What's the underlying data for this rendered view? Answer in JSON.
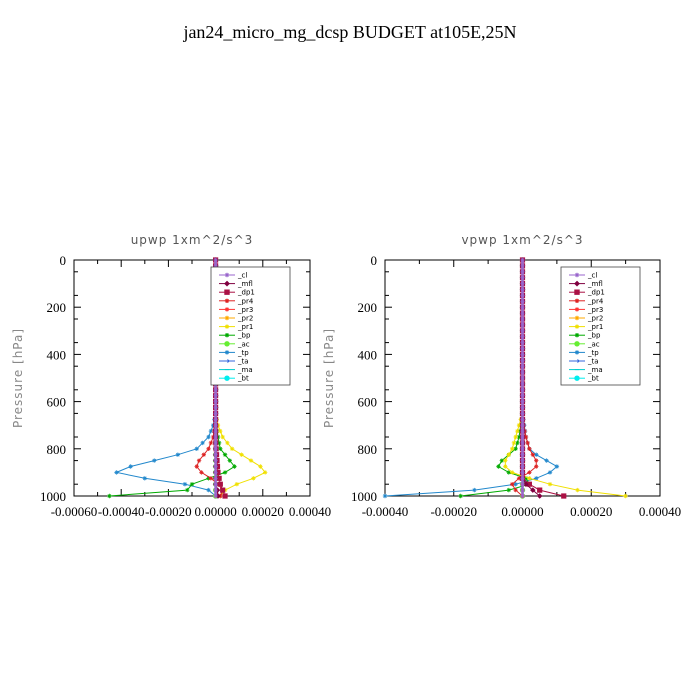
{
  "title": "jan24_micro_mg_dcsp  BUDGET at105E,25N",
  "chart_data": [
    {
      "type": "line",
      "title": "upwp   1xm^2/s^3",
      "ylabel": "Pressure [hPa]",
      "ylim": [
        1000,
        0
      ],
      "xlim": [
        -0.0006,
        0.0004
      ],
      "yticks": [
        0,
        200,
        400,
        600,
        800,
        1000
      ],
      "xtick_labels": [
        "-0.00060",
        "-0.00040",
        "-0.00020",
        "0.00000",
        "0.00020",
        "0.00040"
      ],
      "legend_position": "top-right",
      "pressure": [
        0,
        100,
        200,
        300,
        400,
        500,
        600,
        650,
        700,
        750,
        800,
        825,
        850,
        875,
        900,
        925,
        950,
        975,
        1000
      ],
      "series": [
        {
          "name": "_cl",
          "color": "#9966cc",
          "marker": "star",
          "values": [
            0,
            0,
            0,
            0,
            0,
            0,
            0,
            0,
            0,
            0,
            0,
            0,
            0,
            0,
            0,
            0,
            0,
            0,
            0
          ]
        },
        {
          "name": "_mfl",
          "color": "#800040",
          "marker": "diamond",
          "values": [
            0,
            0,
            0,
            0,
            0,
            0,
            0,
            0,
            0,
            0,
            0,
            0,
            0,
            0,
            0,
            0,
            0,
            8e-06,
            1e-05
          ]
        },
        {
          "name": "_dp1",
          "color": "#aa1144",
          "marker": "square",
          "values": [
            0,
            0,
            0,
            0,
            0,
            0,
            0,
            0,
            0,
            0,
            2e-06,
            4e-06,
            6e-06,
            8e-06,
            1e-05,
            1.5e-05,
            2e-05,
            3e-05,
            4e-05
          ]
        },
        {
          "name": "_pr4",
          "color": "#dd2222",
          "marker": "star",
          "values": [
            0,
            0,
            0,
            0,
            0,
            0,
            0,
            0,
            -3e-06,
            -1e-05,
            -3e-05,
            -5e-05,
            -7e-05,
            -8e-05,
            -6e-05,
            -2e-05,
            1e-05,
            3e-05,
            2e-05
          ]
        },
        {
          "name": "_pr3",
          "color": "#ff3333",
          "marker": "star",
          "values": [
            0,
            0,
            0,
            0,
            0,
            0,
            0,
            0,
            0,
            0,
            0,
            0,
            0,
            0,
            0,
            0,
            0,
            5e-06,
            1e-05
          ]
        },
        {
          "name": "_pr2",
          "color": "#ffaa00",
          "marker": "star",
          "values": [
            0,
            0,
            0,
            0,
            0,
            0,
            0,
            0,
            0,
            0,
            0,
            0,
            0,
            0,
            0,
            0,
            0,
            0,
            0
          ]
        },
        {
          "name": "_pr1",
          "color": "#f0e000",
          "marker": "star",
          "values": [
            0,
            0,
            0,
            0,
            0,
            0,
            0,
            0,
            1e-05,
            3e-05,
            7e-05,
            0.00011,
            0.00015,
            0.00019,
            0.00021,
            0.00016,
            9e-05,
            4e-05,
            2e-05
          ]
        },
        {
          "name": "_bp",
          "color": "#00aa00",
          "marker": "star",
          "values": [
            0,
            0,
            0,
            0,
            0,
            0,
            0,
            0,
            3e-06,
            1e-05,
            2e-05,
            4e-05,
            6e-05,
            8e-05,
            4e-05,
            -3e-05,
            -0.0001,
            -0.00012,
            -0.00045
          ]
        },
        {
          "name": "_ac",
          "color": "#66ee33",
          "marker": "circle",
          "values": [
            0,
            0,
            0,
            0,
            0,
            0,
            0,
            0,
            0,
            0,
            0,
            0,
            0,
            0,
            0,
            0,
            0,
            0,
            0
          ]
        },
        {
          "name": "_tp",
          "color": "#2288cc",
          "marker": "star",
          "values": [
            0,
            0,
            0,
            0,
            0,
            0,
            0,
            0,
            -1e-05,
            -3e-05,
            -8e-05,
            -0.00016,
            -0.00026,
            -0.00036,
            -0.00042,
            -0.0003,
            -0.00013,
            -3e-05,
            0
          ]
        },
        {
          "name": "_ta",
          "color": "#3366dd",
          "marker": "arrow",
          "values": [
            0,
            0,
            0,
            0,
            0,
            0,
            0,
            0,
            0,
            0,
            0,
            0,
            0,
            0,
            0,
            0,
            0,
            0,
            0
          ]
        },
        {
          "name": "_ma",
          "color": "#00cccc",
          "marker": "dash",
          "values": [
            0,
            0,
            0,
            0,
            0,
            0,
            0,
            0,
            0,
            0,
            0,
            0,
            0,
            0,
            0,
            0,
            0,
            0,
            0
          ]
        },
        {
          "name": "_bt",
          "color": "#00eeee",
          "marker": "circle",
          "values": [
            0,
            0,
            0,
            0,
            0,
            0,
            0,
            0,
            0,
            0,
            0,
            0,
            0,
            0,
            0,
            0,
            0,
            0,
            0
          ]
        }
      ]
    },
    {
      "type": "line",
      "title": "vpwp   1xm^2/s^3",
      "ylabel": "Pressure [hPa]",
      "ylim": [
        1000,
        0
      ],
      "xlim": [
        -0.0004,
        0.0004
      ],
      "yticks": [
        0,
        200,
        400,
        600,
        800,
        1000
      ],
      "xtick_labels": [
        "-0.00040",
        "-0.00020",
        "0.00000",
        "0.00020",
        "0.00040"
      ],
      "legend_position": "top-right",
      "pressure": [
        0,
        100,
        200,
        300,
        400,
        500,
        600,
        650,
        700,
        750,
        800,
        825,
        850,
        875,
        900,
        925,
        950,
        975,
        1000
      ],
      "series": [
        {
          "name": "_cl",
          "color": "#9966cc",
          "marker": "star",
          "values": [
            0,
            0,
            0,
            0,
            0,
            0,
            0,
            0,
            0,
            0,
            0,
            0,
            0,
            0,
            0,
            0,
            0,
            0,
            0
          ]
        },
        {
          "name": "_mfl",
          "color": "#800040",
          "marker": "diamond",
          "values": [
            0,
            0,
            0,
            0,
            0,
            0,
            0,
            0,
            0,
            0,
            0,
            0,
            0,
            0,
            0,
            0,
            1e-05,
            3e-05,
            5e-05
          ]
        },
        {
          "name": "_dp1",
          "color": "#aa1144",
          "marker": "square",
          "values": [
            0,
            0,
            0,
            0,
            0,
            0,
            0,
            0,
            0,
            0,
            0,
            0,
            0,
            0,
            0,
            0,
            2e-05,
            5e-05,
            0.00012
          ]
        },
        {
          "name": "_pr4",
          "color": "#dd2222",
          "marker": "star",
          "values": [
            0,
            0,
            0,
            0,
            0,
            0,
            0,
            0,
            3e-06,
            1e-05,
            2e-05,
            3e-05,
            4e-05,
            4e-05,
            2e-05,
            -1e-05,
            -3e-05,
            -2e-05,
            0
          ]
        },
        {
          "name": "_pr3",
          "color": "#ff3333",
          "marker": "star",
          "values": [
            0,
            0,
            0,
            0,
            0,
            0,
            0,
            0,
            0,
            0,
            0,
            0,
            0,
            0,
            0,
            0,
            0,
            0,
            0
          ]
        },
        {
          "name": "_pr2",
          "color": "#ffaa00",
          "marker": "star",
          "values": [
            0,
            0,
            0,
            0,
            0,
            0,
            0,
            0,
            0,
            0,
            0,
            0,
            0,
            0,
            0,
            0,
            0,
            0,
            0
          ]
        },
        {
          "name": "_pr1",
          "color": "#f0e000",
          "marker": "star",
          "values": [
            0,
            0,
            0,
            0,
            0,
            0,
            0,
            0,
            -1e-05,
            -2e-05,
            -3e-05,
            -4e-05,
            -5e-05,
            -5e-05,
            -3e-05,
            2e-05,
            8e-05,
            0.00016,
            0.0003
          ]
        },
        {
          "name": "_bp",
          "color": "#00aa00",
          "marker": "star",
          "values": [
            0,
            0,
            0,
            0,
            0,
            0,
            0,
            0,
            -5e-06,
            -1e-05,
            -2e-05,
            -4e-05,
            -6e-05,
            -7e-05,
            -4e-05,
            1e-05,
            2e-05,
            -4e-05,
            -0.00018
          ]
        },
        {
          "name": "_ac",
          "color": "#66ee33",
          "marker": "circle",
          "values": [
            0,
            0,
            0,
            0,
            0,
            0,
            0,
            0,
            0,
            0,
            0,
            0,
            0,
            0,
            0,
            0,
            0,
            0,
            0
          ]
        },
        {
          "name": "_tp",
          "color": "#2288cc",
          "marker": "star",
          "values": [
            0,
            0,
            0,
            0,
            0,
            0,
            0,
            0,
            5e-06,
            1e-05,
            2e-05,
            4e-05,
            7e-05,
            0.0001,
            8e-05,
            4e-05,
            -2e-05,
            -0.00014,
            -0.0004
          ]
        },
        {
          "name": "_ta",
          "color": "#3366dd",
          "marker": "arrow",
          "values": [
            0,
            0,
            0,
            0,
            0,
            0,
            0,
            0,
            0,
            0,
            0,
            0,
            0,
            0,
            0,
            0,
            0,
            0,
            0
          ]
        },
        {
          "name": "_ma",
          "color": "#00cccc",
          "marker": "dash",
          "values": [
            0,
            0,
            0,
            0,
            0,
            0,
            0,
            0,
            0,
            0,
            0,
            0,
            0,
            0,
            0,
            0,
            0,
            0,
            0
          ]
        },
        {
          "name": "_bt",
          "color": "#00eeee",
          "marker": "circle",
          "values": [
            0,
            0,
            0,
            0,
            0,
            0,
            0,
            0,
            0,
            0,
            0,
            0,
            0,
            0,
            0,
            0,
            0,
            0,
            0
          ]
        }
      ]
    }
  ]
}
